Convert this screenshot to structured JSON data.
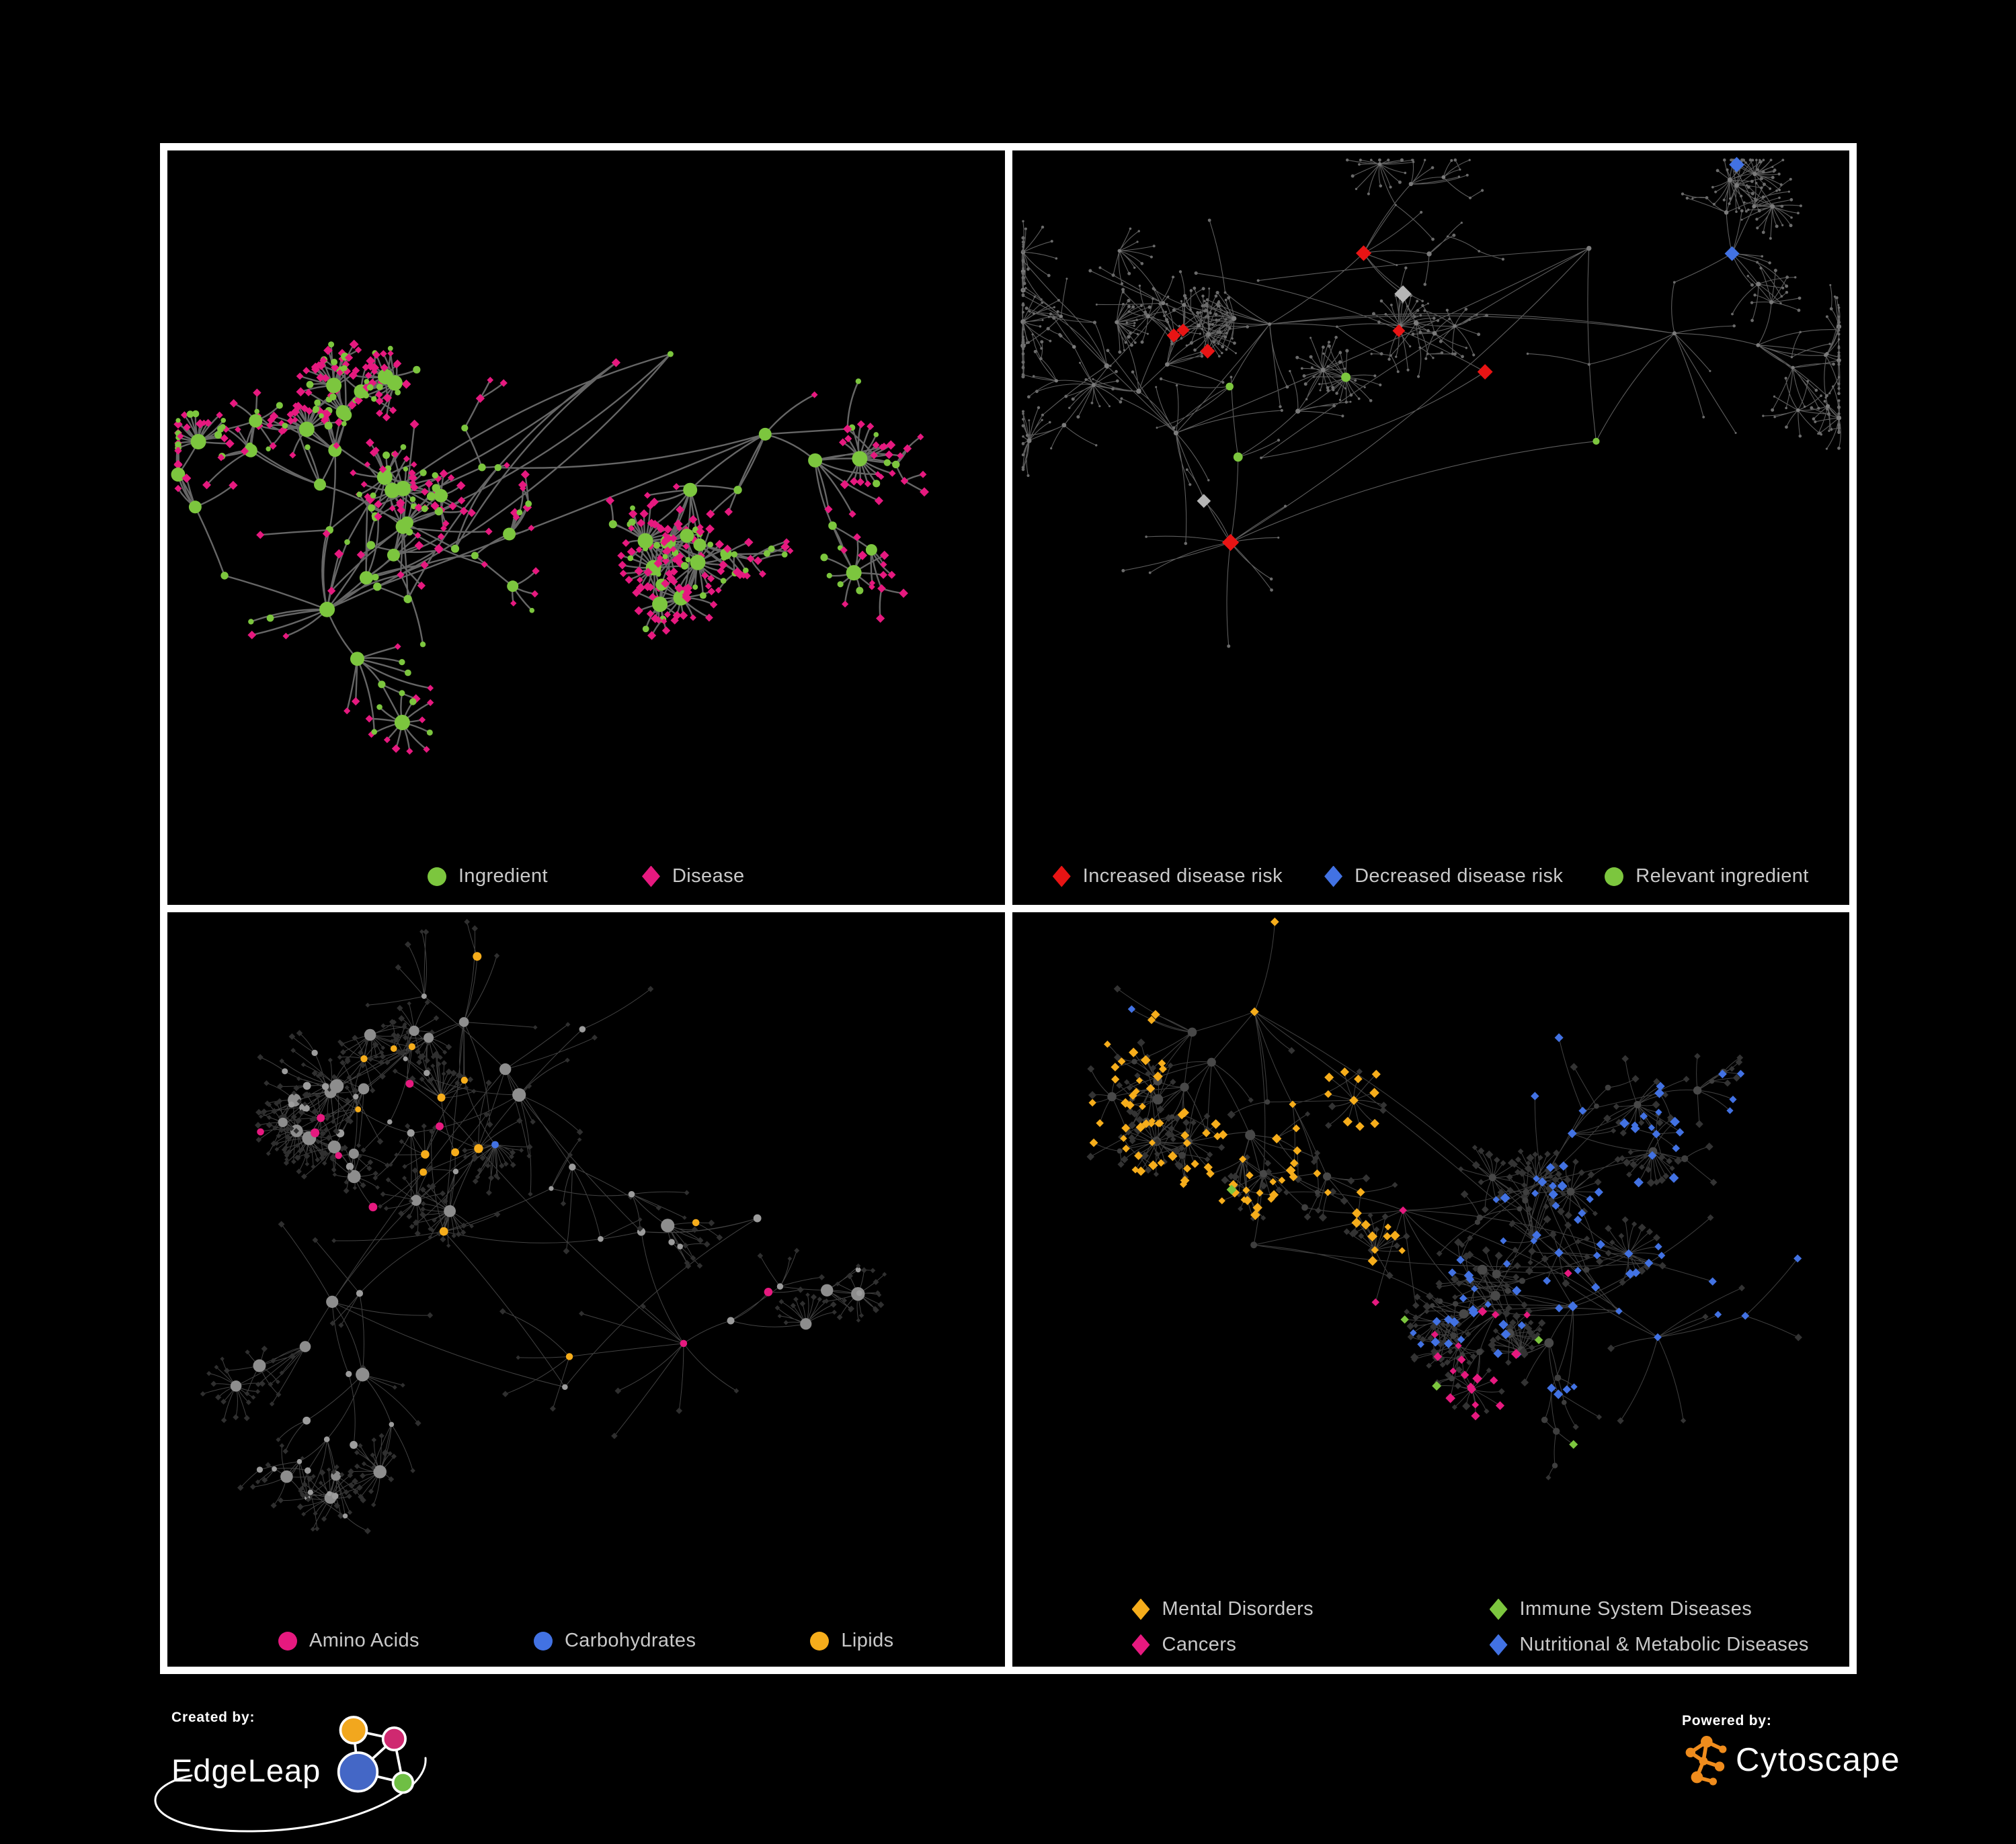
{
  "colors": {
    "background": "#000000",
    "frame": "#ffffff",
    "legend_text": "#c9c9c9",
    "green": "#7cc63e",
    "pink": "#e6197f",
    "red": "#e81414",
    "blue": "#4272e3",
    "amber": "#f6ad1b",
    "gray_highlight": "#b5b5b5"
  },
  "panels": [
    {
      "id": "ingredient-disease",
      "legend": [
        {
          "label": "Ingredient",
          "shape": "circle",
          "color": "#7cc63e"
        },
        {
          "label": "Disease",
          "shape": "diamond",
          "color": "#e6197f"
        }
      ]
    },
    {
      "id": "disease-risk",
      "legend": [
        {
          "label": "Increased disease risk",
          "shape": "diamond",
          "color": "#e81414"
        },
        {
          "label": "Decreased disease risk",
          "shape": "diamond",
          "color": "#4272e3"
        },
        {
          "label": "Relevant ingredient",
          "shape": "circle",
          "color": "#7cc63e"
        }
      ]
    },
    {
      "id": "nutrient-classes",
      "legend": [
        {
          "label": "Amino Acids",
          "shape": "circle",
          "color": "#e6197f"
        },
        {
          "label": "Carbohydrates",
          "shape": "circle",
          "color": "#4272e3"
        },
        {
          "label": "Lipids",
          "shape": "circle",
          "color": "#f6ad1b"
        }
      ]
    },
    {
      "id": "disease-classes",
      "legend": [
        {
          "label": "Mental Disorders",
          "shape": "diamond",
          "color": "#f6ad1b"
        },
        {
          "label": "Immune System Diseases",
          "shape": "diamond",
          "color": "#7cc63e"
        },
        {
          "label": "Cancers",
          "shape": "diamond",
          "color": "#e6197f"
        },
        {
          "label": "Nutritional & Metabolic Diseases",
          "shape": "diamond",
          "color": "#4272e3"
        }
      ]
    }
  ],
  "footer": {
    "created_by": {
      "label": "Created by:",
      "brand": "EdgeLeap"
    },
    "powered_by": {
      "label": "Powered by:",
      "brand": "Cytoscape"
    }
  }
}
